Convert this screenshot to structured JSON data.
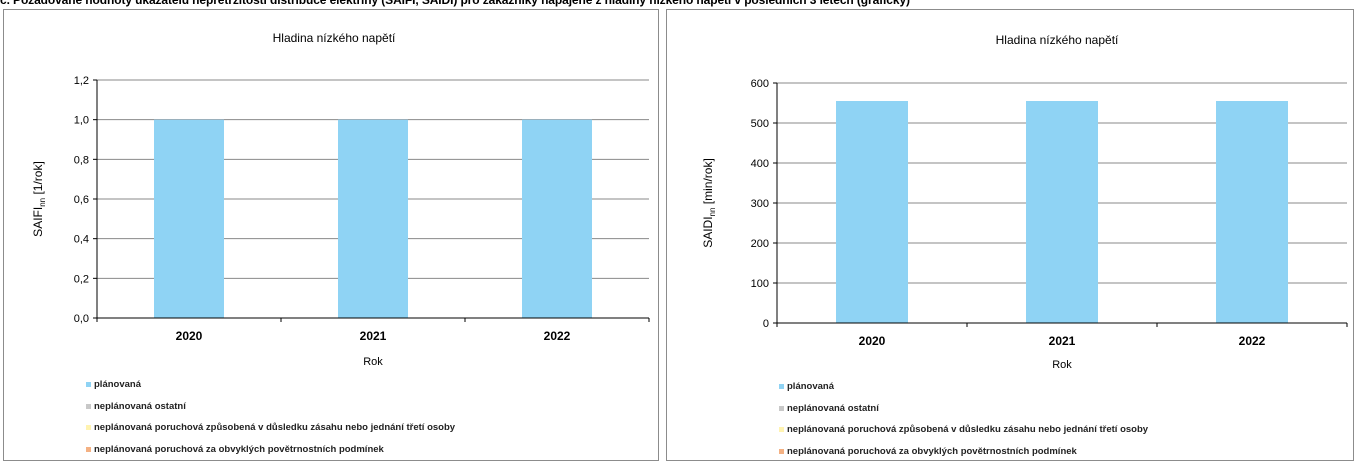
{
  "header": {
    "text": "c. Požadované hodnoty ukazatelů nepřetržitosti distribuce elektřiny (SAIFI, SAIDI) pro zákazníky napájené z hladiny nízkého napětí v posledních 3 letech (grafický)"
  },
  "legend": [
    {
      "label": "plánovaná",
      "color": "#8fd3f4"
    },
    {
      "label": "neplánovaná ostatní",
      "color": "#c8c8c8"
    },
    {
      "label": "neplánovaná poruchová způsobená v důsledku zásahu nebo jednání třetí osoby",
      "color": "#fff3b0"
    },
    {
      "label": "neplánovaná poruchová za obvyklých povětrnostních podmínek",
      "color": "#f4b183"
    }
  ],
  "chart_data": [
    {
      "type": "bar",
      "title": "Hladina nízkého napětí",
      "xlabel": "Rok",
      "ylabel_main": "SAIFI",
      "ylabel_sub": "nn",
      "ylabel_unit": "[1/rok]",
      "categories": [
        "2020",
        "2021",
        "2022"
      ],
      "series": [
        {
          "name": "plánovaná",
          "values": [
            1.0,
            1.0,
            1.0
          ],
          "color": "#8fd3f4"
        }
      ],
      "ylim": [
        0,
        1.2
      ],
      "yticks": [
        "0,0",
        "0,2",
        "0,4",
        "0,6",
        "0,8",
        "1,0",
        "1,2"
      ],
      "grid": true,
      "legend_position": "bottom"
    },
    {
      "type": "bar",
      "title": "Hladina nízkého napětí",
      "xlabel": "Rok",
      "ylabel_main": "SAIDI",
      "ylabel_sub": "nn",
      "ylabel_unit": "[min/rok]",
      "categories": [
        "2020",
        "2021",
        "2022"
      ],
      "series": [
        {
          "name": "plánovaná",
          "values": [
            555,
            555,
            555
          ],
          "color": "#8fd3f4"
        }
      ],
      "ylim": [
        0,
        600
      ],
      "yticks": [
        "0",
        "100",
        "200",
        "300",
        "400",
        "500",
        "600"
      ],
      "grid": true,
      "legend_position": "bottom"
    }
  ]
}
